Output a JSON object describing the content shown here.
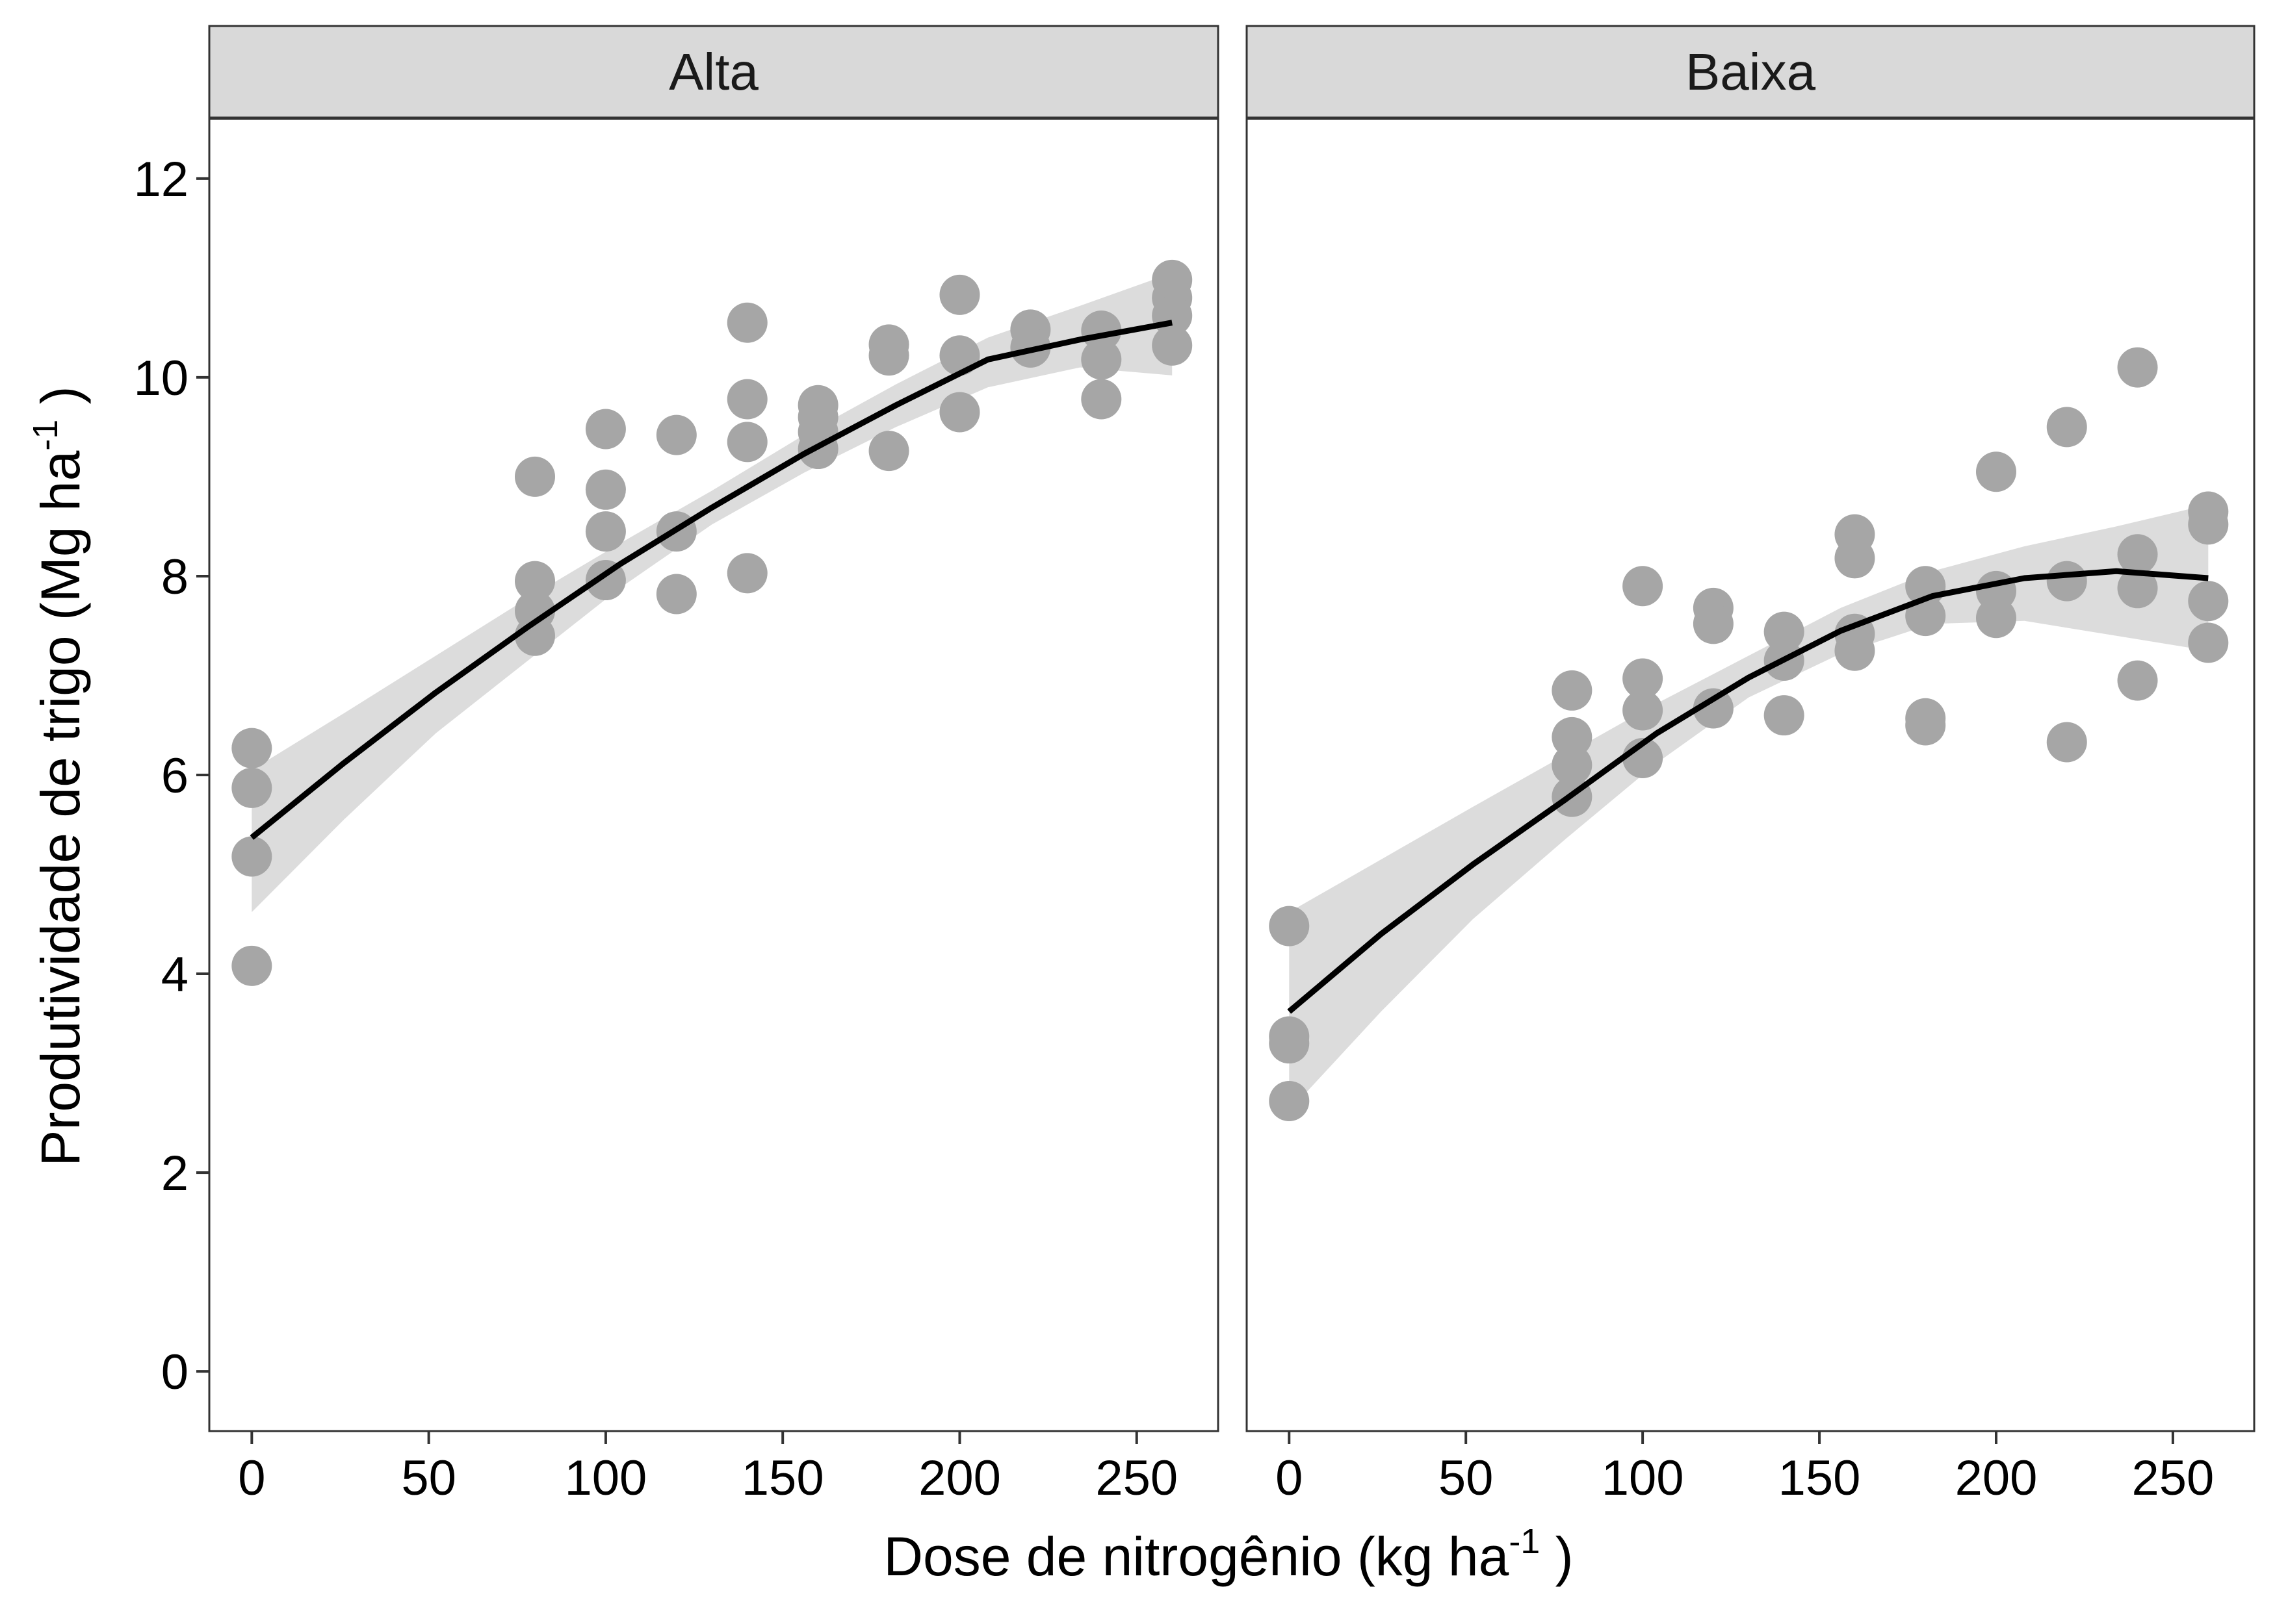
{
  "chart_data": {
    "type": "scatter",
    "xlabel": {
      "main": "Dose de nitrogênio (kg ha",
      "sup": "-1",
      "end": " )"
    },
    "ylabel": {
      "main": "Produtividade de trigo (Mg ha",
      "sup": "-1",
      "end": " )"
    },
    "xlim": [
      -12,
      273
    ],
    "ylim": [
      -0.6,
      12.6
    ],
    "x_ticks": [
      0,
      50,
      100,
      150,
      200,
      250
    ],
    "y_ticks": [
      0,
      2,
      4,
      6,
      8,
      10,
      12
    ],
    "x_tick_labels": [
      "0",
      "50",
      "100",
      "150",
      "200",
      "250"
    ],
    "y_tick_labels": [
      "0",
      "2",
      "4",
      "6",
      "8",
      "10",
      "12"
    ],
    "colors": {
      "points": "#a6a6a6",
      "fit": "#000000",
      "band": "#d6d6d6",
      "strip": "#d9d9d9",
      "frame": "#333333"
    },
    "panels": [
      {
        "name": "Alta",
        "points": [
          [
            0,
            6.27
          ],
          [
            0,
            5.87
          ],
          [
            0,
            5.18
          ],
          [
            0,
            4.08
          ],
          [
            80,
            9.0
          ],
          [
            80,
            7.95
          ],
          [
            80,
            7.65
          ],
          [
            80,
            7.4
          ],
          [
            100,
            9.48
          ],
          [
            100,
            8.87
          ],
          [
            100,
            8.45
          ],
          [
            100,
            7.96
          ],
          [
            120,
            9.42
          ],
          [
            120,
            8.45
          ],
          [
            120,
            7.82
          ],
          [
            140,
            10.55
          ],
          [
            140,
            9.78
          ],
          [
            140,
            9.35
          ],
          [
            140,
            8.03
          ],
          [
            160,
            9.72
          ],
          [
            160,
            9.6
          ],
          [
            160,
            9.45
          ],
          [
            160,
            9.28
          ],
          [
            180,
            10.33
          ],
          [
            180,
            10.22
          ],
          [
            180,
            9.26
          ],
          [
            200,
            10.83
          ],
          [
            200,
            10.22
          ],
          [
            200,
            9.65
          ],
          [
            220,
            10.48
          ],
          [
            220,
            10.3
          ],
          [
            240,
            10.47
          ],
          [
            240,
            10.18
          ],
          [
            240,
            9.78
          ],
          [
            260,
            10.98
          ],
          [
            260,
            10.8
          ],
          [
            260,
            10.62
          ],
          [
            260,
            10.32
          ]
        ],
        "fit": {
          "x": [
            0,
            26,
            52,
            78,
            104,
            130,
            156,
            182,
            208,
            234,
            260
          ],
          "y": [
            5.37,
            6.12,
            6.83,
            7.49,
            8.12,
            8.69,
            9.23,
            9.72,
            10.18,
            10.38,
            10.55
          ]
        },
        "band": {
          "upper": [
            6.05,
            6.62,
            7.2,
            7.78,
            8.33,
            8.86,
            9.42,
            9.93,
            10.4,
            10.72,
            11.05
          ],
          "lower": [
            4.62,
            5.55,
            6.42,
            7.15,
            7.88,
            8.52,
            9.04,
            9.5,
            9.9,
            10.1,
            10.02
          ]
        }
      },
      {
        "name": "Baixa",
        "points": [
          [
            0,
            4.48
          ],
          [
            0,
            3.37
          ],
          [
            0,
            3.3
          ],
          [
            0,
            2.72
          ],
          [
            80,
            6.85
          ],
          [
            80,
            6.38
          ],
          [
            80,
            6.1
          ],
          [
            80,
            5.78
          ],
          [
            100,
            7.9
          ],
          [
            100,
            6.97
          ],
          [
            100,
            6.65
          ],
          [
            100,
            6.17
          ],
          [
            120,
            7.68
          ],
          [
            120,
            7.52
          ],
          [
            120,
            6.67
          ],
          [
            140,
            7.44
          ],
          [
            140,
            7.15
          ],
          [
            140,
            6.6
          ],
          [
            160,
            8.42
          ],
          [
            160,
            8.18
          ],
          [
            160,
            7.42
          ],
          [
            160,
            7.25
          ],
          [
            180,
            7.9
          ],
          [
            180,
            7.6
          ],
          [
            180,
            6.57
          ],
          [
            180,
            6.5
          ],
          [
            200,
            9.05
          ],
          [
            200,
            7.85
          ],
          [
            200,
            7.58
          ],
          [
            220,
            9.5
          ],
          [
            220,
            7.95
          ],
          [
            220,
            6.33
          ],
          [
            240,
            10.1
          ],
          [
            240,
            8.22
          ],
          [
            240,
            7.88
          ],
          [
            240,
            6.95
          ],
          [
            260,
            8.65
          ],
          [
            260,
            8.52
          ],
          [
            260,
            7.75
          ],
          [
            260,
            7.33
          ]
        ],
        "fit": {
          "x": [
            0,
            26,
            52,
            78,
            104,
            130,
            156,
            182,
            208,
            234,
            260
          ],
          "y": [
            3.62,
            4.4,
            5.1,
            5.75,
            6.42,
            6.98,
            7.45,
            7.8,
            7.98,
            8.05,
            7.98
          ]
        },
        "band": {
          "upper": [
            4.62,
            5.15,
            5.68,
            6.2,
            6.72,
            7.2,
            7.68,
            8.05,
            8.3,
            8.5,
            8.72
          ],
          "lower": [
            2.62,
            3.62,
            4.55,
            5.35,
            6.12,
            6.78,
            7.22,
            7.52,
            7.55,
            7.4,
            7.25
          ]
        }
      }
    ]
  }
}
